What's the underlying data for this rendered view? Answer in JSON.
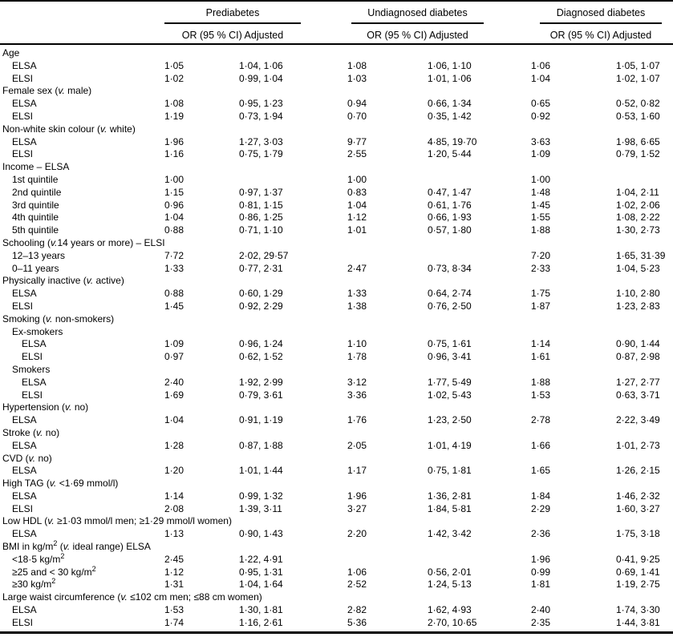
{
  "colors": {
    "background": "#ffffff",
    "text": "#000000",
    "rule": "#000000"
  },
  "table": {
    "col_groups": [
      {
        "title": "Prediabetes",
        "subheader": "OR (95 % CI) Adjusted"
      },
      {
        "title": "Undiagnosed diabetes",
        "subheader": "OR (95 % CI) Adjusted"
      },
      {
        "title": "Diagnosed diabetes",
        "subheader": "OR (95 % CI) Adjusted"
      }
    ],
    "rows": [
      {
        "label": "Age",
        "indent": 0,
        "type": "section"
      },
      {
        "label": "ELSA",
        "indent": 1,
        "type": "data",
        "values": [
          "1·05",
          "1·04, 1·06",
          "1·08",
          "1·06, 1·10",
          "1·06",
          "1·05, 1·07"
        ]
      },
      {
        "label": "ELSI",
        "indent": 1,
        "type": "data",
        "values": [
          "1·02",
          "0·99, 1·04",
          "1·03",
          "1·01, 1·06",
          "1·04",
          "1·02, 1·07"
        ]
      },
      {
        "label": "Female sex (<i>v.</i> male)",
        "indent": 0,
        "type": "section"
      },
      {
        "label": "ELSA",
        "indent": 1,
        "type": "data",
        "values": [
          "1·08",
          "0·95, 1·23",
          "0·94",
          "0·66, 1·34",
          "0·65",
          "0·52, 0·82"
        ]
      },
      {
        "label": "ELSI",
        "indent": 1,
        "type": "data",
        "values": [
          "1·19",
          "0·73, 1·94",
          "0·70",
          "0·35, 1·42",
          "0·92",
          "0·53, 1·60"
        ]
      },
      {
        "label": "Non-white skin colour (<i>v.</i> white)",
        "indent": 0,
        "type": "section"
      },
      {
        "label": "ELSA",
        "indent": 1,
        "type": "data",
        "values": [
          "1·96",
          "1·27, 3·03",
          "9·77",
          "4·85, 19·70",
          "3·63",
          "1·98, 6·65"
        ]
      },
      {
        "label": "ELSI",
        "indent": 1,
        "type": "data",
        "values": [
          "1·16",
          "0·75, 1·79",
          "2·55",
          "1·20, 5·44",
          "1·09",
          "0·79, 1·52"
        ]
      },
      {
        "label": "Income – ELSA",
        "indent": 0,
        "type": "section"
      },
      {
        "label": "1st quintile",
        "indent": 1,
        "type": "data",
        "values": [
          "1·00",
          "",
          "1·00",
          "",
          "1·00",
          ""
        ]
      },
      {
        "label": "2nd quintile",
        "indent": 1,
        "type": "data",
        "values": [
          "1·15",
          "0·97, 1·37",
          "0·83",
          "0·47, 1·47",
          "1·48",
          "1·04, 2·11"
        ]
      },
      {
        "label": "3rd quintile",
        "indent": 1,
        "type": "data",
        "values": [
          "0·96",
          "0·81, 1·15",
          "1·04",
          "0·61, 1·76",
          "1·45",
          "1·02, 2·06"
        ]
      },
      {
        "label": "4th quintile",
        "indent": 1,
        "type": "data",
        "values": [
          "1·04",
          "0·86, 1·25",
          "1·12",
          "0·66, 1·93",
          "1·55",
          "1·08, 2·22"
        ]
      },
      {
        "label": "5th quintile",
        "indent": 1,
        "type": "data",
        "values": [
          "0·88",
          "0·71, 1·10",
          "1·01",
          "0·57, 1·80",
          "1·88",
          "1·30, 2·73"
        ]
      },
      {
        "label": "Schooling (<i>v.</i>14 years or more) – ELSI",
        "indent": 0,
        "type": "section"
      },
      {
        "label": "12–13 years",
        "indent": 1,
        "type": "data",
        "values": [
          "7·72",
          "2·02, 29·57",
          "",
          "",
          "7·20",
          "1·65, 31·39"
        ]
      },
      {
        "label": "0–11 years",
        "indent": 1,
        "type": "data",
        "values": [
          "1·33",
          "0·77, 2·31",
          "2·47",
          "0·73, 8·34",
          "2·33",
          "1·04, 5·23"
        ]
      },
      {
        "label": "Physically inactive (<i>v.</i> active)",
        "indent": 0,
        "type": "section"
      },
      {
        "label": "ELSA",
        "indent": 1,
        "type": "data",
        "values": [
          "0·88",
          "0·60, 1·29",
          "1·33",
          "0·64, 2·74",
          "1·75",
          "1·10, 2·80"
        ]
      },
      {
        "label": "ELSI",
        "indent": 1,
        "type": "data",
        "values": [
          "1·45",
          "0·92, 2·29",
          "1·38",
          "0·76, 2·50",
          "1·87",
          "1·23, 2·83"
        ]
      },
      {
        "label": "Smoking (<i>v.</i> non-smokers)",
        "indent": 0,
        "type": "section"
      },
      {
        "label": "Ex-smokers",
        "indent": 1,
        "type": "subsection"
      },
      {
        "label": "ELSA",
        "indent": 2,
        "type": "data",
        "values": [
          "1·09",
          "0·96, 1·24",
          "1·10",
          "0·75, 1·61",
          "1·14",
          "0·90, 1·44"
        ]
      },
      {
        "label": "ELSI",
        "indent": 2,
        "type": "data",
        "values": [
          "0·97",
          "0·62, 1·52",
          "1·78",
          "0·96, 3·41",
          "1·61",
          "0·87, 2·98"
        ]
      },
      {
        "label": "Smokers",
        "indent": 1,
        "type": "subsection"
      },
      {
        "label": "ELSA",
        "indent": 2,
        "type": "data",
        "values": [
          "2·40",
          "1·92, 2·99",
          "3·12",
          "1·77, 5·49",
          "1·88",
          "1·27, 2·77"
        ]
      },
      {
        "label": "ELSI",
        "indent": 2,
        "type": "data",
        "values": [
          "1·69",
          "0·79, 3·61",
          "3·36",
          "1·02, 5·43",
          "1·53",
          "0·63, 3·71"
        ]
      },
      {
        "label": "Hypertension (<i>v.</i> no)",
        "indent": 0,
        "type": "section"
      },
      {
        "label": "ELSA",
        "indent": 1,
        "type": "data",
        "values": [
          "1·04",
          "0·91, 1·19",
          "1·76",
          "1·23, 2·50",
          "2·78",
          "2·22, 3·49"
        ]
      },
      {
        "label": "Stroke (<i>v.</i> no)",
        "indent": 0,
        "type": "section"
      },
      {
        "label": "ELSA",
        "indent": 1,
        "type": "data",
        "values": [
          "1·28",
          "0·87, 1·88",
          "2·05",
          "1·01, 4·19",
          "1·66",
          "1·01, 2·73"
        ]
      },
      {
        "label": "CVD (<i>v.</i> no)",
        "indent": 0,
        "type": "section"
      },
      {
        "label": "ELSA",
        "indent": 1,
        "type": "data",
        "values": [
          "1·20",
          "1·01, 1·44",
          "1·17",
          "0·75, 1·81",
          "1·65",
          "1·26, 2·15"
        ]
      },
      {
        "label": "High TAG (<i>v.</i> &lt;1·69 mmol/l)",
        "indent": 0,
        "type": "section"
      },
      {
        "label": "ELSA",
        "indent": 1,
        "type": "data",
        "values": [
          "1·14",
          "0·99, 1·32",
          "1·96",
          "1·36, 2·81",
          "1·84",
          "1·46, 2·32"
        ]
      },
      {
        "label": "ELSI",
        "indent": 1,
        "type": "data",
        "values": [
          "2·08",
          "1·39, 3·11",
          "3·27",
          "1·84, 5·81",
          "2·29",
          "1·60, 3·27"
        ]
      },
      {
        "label": "Low HDL (<i>v.</i> ≥1·03 mmol/l men; ≥1·29 mmol/l women)",
        "indent": 0,
        "type": "section"
      },
      {
        "label": "ELSA",
        "indent": 1,
        "type": "data",
        "values": [
          "1·13",
          "0·90, 1·43",
          "2·20",
          "1·42, 3·42",
          "2·36",
          "1·75, 3·18"
        ]
      },
      {
        "label": "BMI in kg/m<sup>2</sup> (<i>v.</i> ideal range) ELSA",
        "indent": 0,
        "type": "section"
      },
      {
        "label": "&lt;18·5 kg/m<sup>2</sup>",
        "indent": 1,
        "type": "data",
        "values": [
          "2·45",
          "1·22, 4·91",
          "",
          "",
          "1·96",
          "0·41, 9·25"
        ]
      },
      {
        "label": "≥25 and &lt; 30 kg/m<sup>2</sup>",
        "indent": 1,
        "type": "data",
        "values": [
          "1·12",
          "0·95, 1·31",
          "1·06",
          "0·56, 2·01",
          "0·99",
          "0·69, 1·41"
        ]
      },
      {
        "label": "≥30 kg/m<sup>2</sup>",
        "indent": 1,
        "type": "data",
        "values": [
          "1·31",
          "1·04, 1·64",
          "2·52",
          "1·24, 5·13",
          "1·81",
          "1·19, 2·75"
        ]
      },
      {
        "label": "Large waist circumference (<i>v.</i> ≤102 cm men; ≤88 cm women)",
        "indent": 0,
        "type": "section"
      },
      {
        "label": "ELSA",
        "indent": 1,
        "type": "data",
        "values": [
          "1·53",
          "1·30, 1·81",
          "2·82",
          "1·62, 4·93",
          "2·40",
          "1·74, 3·30"
        ]
      },
      {
        "label": "ELSI",
        "indent": 1,
        "type": "data",
        "values": [
          "1·74",
          "1·16, 2·61",
          "5·36",
          "2·70, 10·65",
          "2·35",
          "1·44, 3·81"
        ]
      }
    ]
  }
}
